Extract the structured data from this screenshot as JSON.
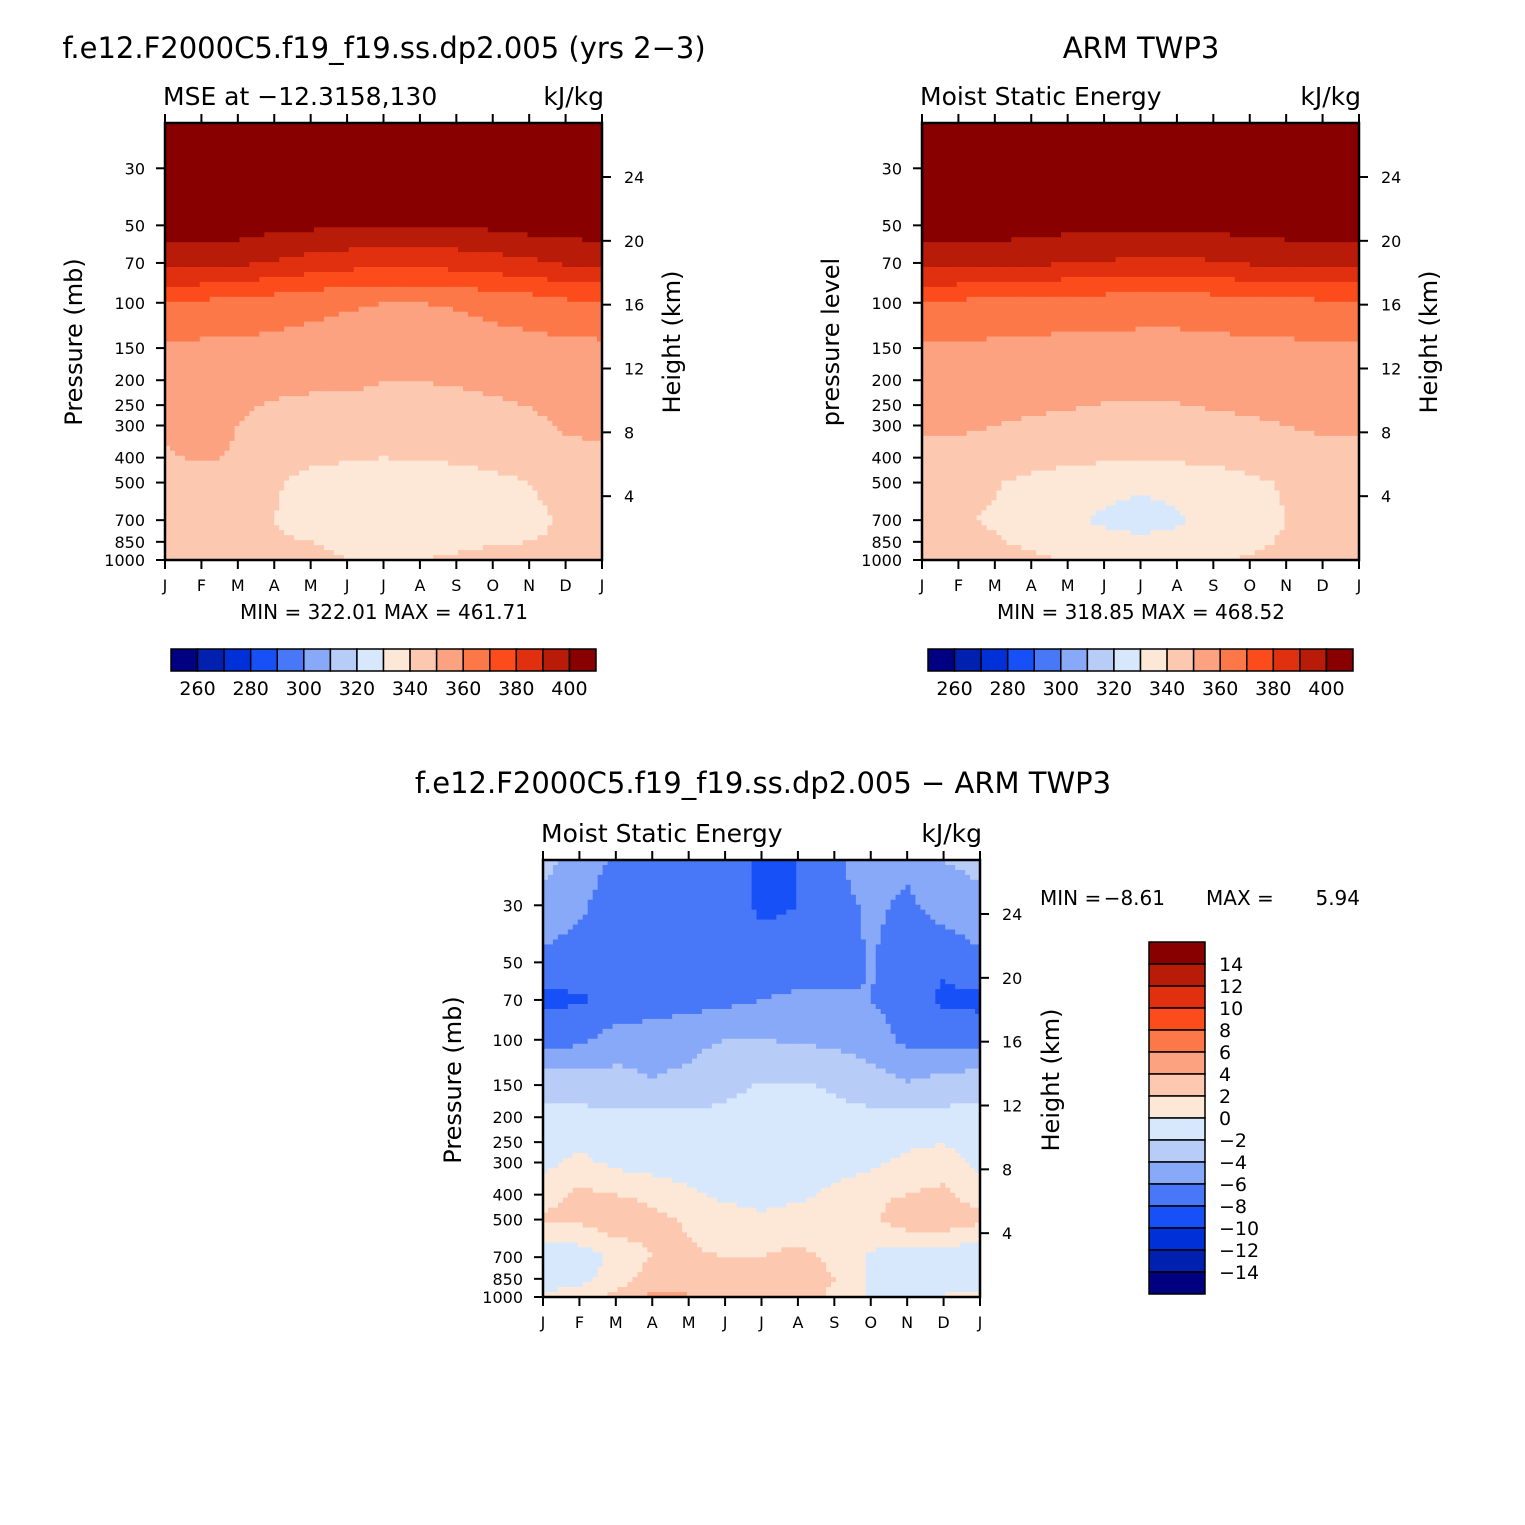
{
  "panels": [
    {
      "title": "f.e12.F2000C5.f19_f19.ss.dp2.005 (yrs 2−3)",
      "subtitle": "MSE at −12.3158,130",
      "units": "kJ/kg",
      "y_left_label": "Pressure (mb)",
      "y_right_label": "Height (km)",
      "stats": "MIN = 322.01 MAX = 461.71"
    },
    {
      "title": "ARM TWP3",
      "subtitle": "Moist Static Energy",
      "units": "kJ/kg",
      "y_left_label": "pressure level",
      "y_right_label": "Height (km)",
      "stats": "MIN = 318.85 MAX = 468.52"
    },
    {
      "title": "f.e12.F2000C5.f19_f19.ss.dp2.005 − ARM TWP3",
      "subtitle": "Moist Static Energy",
      "units": "kJ/kg",
      "y_left_label": "Pressure (mb)",
      "y_right_label": "Height (km)",
      "stats_min_label": "MIN =",
      "stats_min": "−8.61",
      "stats_max_label": "MAX =",
      "stats_max": "5.94"
    }
  ],
  "colors": {
    "abs_scale": [
      "#000080",
      "#0020b0",
      "#0030d8",
      "#1850f8",
      "#4878f8",
      "#88a8f8",
      "#b8ccf8",
      "#d8e8fc",
      "#fde8d8",
      "#fdc8b0",
      "#fca280",
      "#fc7848",
      "#fc4c1c",
      "#e03010",
      "#b81c08",
      "#880000"
    ],
    "diff_scale": [
      "#000080",
      "#0020b0",
      "#0030d8",
      "#1850f8",
      "#4878f8",
      "#88a8f8",
      "#b8ccf8",
      "#d8e8fc",
      "#fde8d8",
      "#fdc8b0",
      "#fca280",
      "#fc7848",
      "#fc4c1c",
      "#e03010",
      "#b81c08",
      "#880000"
    ]
  },
  "chart_data": [
    {
      "type": "heatmap",
      "title": "f.e12.F2000C5.f19_f19.ss.dp2.005 (yrs 2−3)",
      "x_ticks": [
        "J",
        "F",
        "M",
        "A",
        "M",
        "J",
        "J",
        "A",
        "S",
        "O",
        "N",
        "D",
        "J"
      ],
      "y_left_ticks": [
        "30",
        "50",
        "70",
        "100",
        "150",
        "200",
        "250",
        "300",
        "400",
        "500",
        "700",
        "850",
        "1000"
      ],
      "y_right_ticks": [
        "24",
        "20",
        "16",
        "12",
        "8",
        "4"
      ],
      "ylim_pressure_mb": [
        1000,
        20
      ],
      "colorbar_labels": [
        "260",
        "280",
        "300",
        "320",
        "340",
        "360",
        "380",
        "400"
      ],
      "levels": [
        250,
        260,
        270,
        280,
        290,
        300,
        310,
        320,
        330,
        340,
        350,
        360,
        370,
        380,
        390,
        400
      ],
      "grid": {
        "months": [
          0,
          1,
          2,
          3,
          4,
          5,
          6,
          7,
          8,
          9,
          10,
          11,
          12
        ],
        "pressures": [
          1000,
          850,
          700,
          500,
          400,
          300,
          200,
          150,
          100,
          70,
          50,
          30,
          20
        ],
        "values": [
          [
            334,
            335,
            336,
            336,
            334,
            330,
            328,
            330,
            332,
            334,
            335,
            335,
            334
          ],
          [
            331,
            331,
            331,
            331,
            330,
            326,
            324,
            325,
            327,
            329,
            330,
            331,
            331
          ],
          [
            332,
            332,
            331,
            330,
            326,
            322,
            321,
            321,
            322,
            325,
            328,
            331,
            332
          ],
          [
            335,
            335,
            334,
            331,
            327,
            325,
            322,
            323,
            324,
            327,
            330,
            333,
            335
          ],
          [
            339,
            341,
            339,
            334,
            332,
            331,
            330,
            331,
            332,
            334,
            336,
            338,
            339
          ],
          [
            341,
            344,
            340,
            336,
            335,
            335,
            336,
            335,
            335,
            336,
            338,
            341,
            341
          ],
          [
            344,
            345,
            344,
            343,
            342,
            342,
            340,
            340,
            341,
            342,
            343,
            344,
            344
          ],
          [
            348,
            348,
            348,
            347,
            346,
            346,
            345,
            344,
            345,
            346,
            347,
            347,
            348
          ],
          [
            359,
            358,
            357,
            355,
            353,
            351,
            350,
            350,
            351,
            353,
            355,
            358,
            359
          ],
          [
            383,
            384,
            382,
            379,
            376,
            374,
            373,
            373,
            374,
            376,
            378,
            381,
            383
          ],
          [
            395,
            396,
            395,
            393,
            392,
            391,
            390,
            390,
            391,
            392,
            394,
            395,
            395
          ],
          [
            430,
            432,
            430,
            428,
            426,
            425,
            424,
            424,
            425,
            426,
            428,
            430,
            430
          ],
          [
            460,
            461,
            460,
            458,
            457,
            456,
            455,
            455,
            456,
            457,
            459,
            460,
            460
          ]
        ]
      }
    },
    {
      "type": "heatmap",
      "title": "ARM TWP3",
      "x_ticks": [
        "J",
        "F",
        "M",
        "A",
        "M",
        "J",
        "J",
        "A",
        "S",
        "O",
        "N",
        "D",
        "J"
      ],
      "y_left_ticks": [
        "30",
        "50",
        "70",
        "100",
        "150",
        "200",
        "250",
        "300",
        "400",
        "500",
        "700",
        "850",
        "1000"
      ],
      "y_right_ticks": [
        "24",
        "20",
        "16",
        "12",
        "8",
        "4"
      ],
      "ylim_pressure_mb": [
        1000,
        20
      ],
      "colorbar_labels": [
        "260",
        "280",
        "300",
        "320",
        "340",
        "360",
        "380",
        "400"
      ],
      "levels": [
        250,
        260,
        270,
        280,
        290,
        300,
        310,
        320,
        330,
        340,
        350,
        360,
        370,
        380,
        390,
        400
      ],
      "grid": {
        "months": [
          0,
          1,
          2,
          3,
          4,
          5,
          6,
          7,
          8,
          9,
          10,
          11,
          12
        ],
        "pressures": [
          1000,
          850,
          700,
          500,
          400,
          300,
          200,
          150,
          100,
          70,
          50,
          30,
          20
        ],
        "values": [
          [
            335,
            335,
            334,
            332,
            329,
            327,
            326,
            327,
            329,
            331,
            333,
            335,
            335
          ],
          [
            333,
            332,
            331,
            328,
            325,
            322,
            321,
            322,
            325,
            328,
            331,
            333,
            333
          ],
          [
            332,
            331,
            329,
            325,
            321,
            319,
            318,
            319,
            322,
            326,
            330,
            332,
            332
          ],
          [
            334,
            333,
            331,
            327,
            324,
            322,
            321,
            322,
            324,
            328,
            331,
            333,
            334
          ],
          [
            338,
            338,
            337,
            335,
            333,
            332,
            331,
            332,
            333,
            335,
            337,
            338,
            338
          ],
          [
            341,
            341,
            340,
            339,
            338,
            337,
            337,
            337,
            338,
            339,
            340,
            341,
            341
          ],
          [
            345,
            345,
            345,
            344,
            344,
            343,
            343,
            343,
            344,
            344,
            345,
            345,
            345
          ],
          [
            349,
            349,
            348,
            348,
            347,
            347,
            347,
            347,
            347,
            348,
            348,
            349,
            349
          ],
          [
            358,
            358,
            357,
            356,
            355,
            355,
            354,
            354,
            355,
            356,
            357,
            358,
            358
          ],
          [
            384,
            384,
            383,
            382,
            380,
            379,
            378,
            378,
            379,
            381,
            382,
            383,
            384
          ],
          [
            396,
            396,
            395,
            394,
            393,
            393,
            392,
            392,
            393,
            394,
            395,
            396,
            396
          ],
          [
            432,
            432,
            431,
            430,
            429,
            428,
            428,
            428,
            429,
            430,
            431,
            432,
            432
          ],
          [
            466,
            467,
            466,
            465,
            464,
            463,
            463,
            463,
            464,
            465,
            466,
            467,
            466
          ]
        ]
      }
    },
    {
      "type": "heatmap",
      "title": "f.e12.F2000C5.f19_f19.ss.dp2.005 − ARM TWP3",
      "x_ticks": [
        "J",
        "F",
        "M",
        "A",
        "M",
        "J",
        "J",
        "A",
        "S",
        "O",
        "N",
        "D",
        "J"
      ],
      "y_left_ticks": [
        "30",
        "50",
        "70",
        "100",
        "150",
        "200",
        "250",
        "300",
        "400",
        "500",
        "700",
        "850",
        "1000"
      ],
      "y_right_ticks": [
        "24",
        "20",
        "16",
        "12",
        "8",
        "4"
      ],
      "ylim_pressure_mb": [
        1000,
        20
      ],
      "colorbar_labels": [
        "14",
        "12",
        "10",
        "8",
        "6",
        "4",
        "2",
        "0",
        "−2",
        "−4",
        "−6",
        "−8",
        "−10",
        "−12",
        "−14"
      ],
      "levels": [
        -14,
        -12,
        -10,
        -8,
        -6,
        -4,
        -2,
        0,
        2,
        4,
        6,
        8,
        10,
        12,
        14
      ],
      "grid": {
        "months": [
          0,
          1,
          2,
          3,
          4,
          5,
          6,
          7,
          8,
          9,
          10,
          11,
          12
        ],
        "pressures": [
          1000,
          850,
          700,
          500,
          400,
          300,
          200,
          150,
          100,
          70,
          50,
          30,
          20
        ],
        "values": [
          [
            0.5,
            1.0,
            2.5,
            4.5,
            4.2,
            4.0,
            3.5,
            3.0,
            1.5,
            -0.3,
            -0.5,
            0.2,
            0.5
          ],
          [
            -1.2,
            -0.8,
            1.0,
            3.0,
            2.5,
            2.0,
            2.0,
            3.5,
            2.0,
            -0.5,
            -1.5,
            -1.5,
            -1.2
          ],
          [
            -1.5,
            -1.2,
            0.5,
            2.0,
            2.2,
            2.0,
            2.0,
            2.5,
            1.5,
            -0.3,
            -1.5,
            -1.5,
            -1.5
          ],
          [
            2.5,
            2.5,
            3.5,
            2.5,
            1.8,
            1.0,
            0.5,
            1.0,
            1.5,
            1.5,
            3.5,
            3.5,
            2.5
          ],
          [
            1.0,
            2.5,
            2.0,
            1.5,
            0.5,
            -0.5,
            -1.0,
            -0.5,
            0.5,
            1.5,
            2.0,
            2.5,
            1.0
          ],
          [
            -0.5,
            0.5,
            -0.5,
            -1.0,
            -1.5,
            -1.5,
            -1.2,
            -1.0,
            -1.0,
            -0.5,
            0.5,
            1.0,
            -0.5
          ],
          [
            -1.5,
            -1.5,
            -1.5,
            -1.5,
            -1.5,
            -1.5,
            -1.5,
            -1.5,
            -1.5,
            -1.5,
            -1.5,
            -1.5,
            -1.5
          ],
          [
            -2.5,
            -2.8,
            -3.2,
            -3.8,
            -3.5,
            -2.5,
            -1.8,
            -1.8,
            -2.2,
            -3.0,
            -3.8,
            -3.0,
            -2.5
          ],
          [
            -6.8,
            -6.5,
            -5.0,
            -5.0,
            -4.5,
            -4.0,
            -4.0,
            -4.2,
            -4.5,
            -5.0,
            -6.5,
            -7.0,
            -6.8
          ],
          [
            -8.5,
            -8.2,
            -7.5,
            -7.0,
            -6.8,
            -6.5,
            -6.0,
            -5.5,
            -5.5,
            -6.0,
            -7.0,
            -8.3,
            -8.5
          ],
          [
            -6.5,
            -7.2,
            -7.5,
            -7.5,
            -7.5,
            -7.5,
            -7.5,
            -7.5,
            -7.5,
            -5.8,
            -7.5,
            -7.8,
            -6.5
          ],
          [
            -4.5,
            -5.5,
            -7.5,
            -7.5,
            -7.5,
            -7.5,
            -8.2,
            -8.0,
            -7.0,
            -5.5,
            -6.5,
            -5.0,
            -4.5
          ],
          [
            -3.5,
            -4.5,
            -6.5,
            -7.0,
            -7.0,
            -7.0,
            -8.5,
            -8.0,
            -6.5,
            -4.5,
            -5.5,
            -4.0,
            -3.5
          ]
        ]
      }
    }
  ]
}
